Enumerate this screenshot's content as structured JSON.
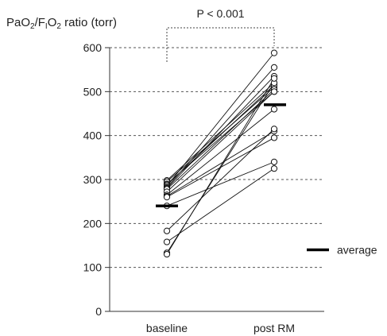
{
  "chart_data": {
    "type": "line",
    "ylabel": {
      "parts": [
        {
          "t": "PaO",
          "sub": false
        },
        {
          "t": "2",
          "sub": true
        },
        {
          "t": "/F",
          "sub": false
        },
        {
          "t": "I",
          "sub": true
        },
        {
          "t": "O",
          "sub": false
        },
        {
          "t": "2",
          "sub": true
        },
        {
          "t": " ratio (torr)",
          "sub": false
        }
      ]
    },
    "categories": [
      "baseline",
      "post RM"
    ],
    "ylim": [
      0,
      600
    ],
    "yticks": [
      0,
      100,
      200,
      300,
      400,
      500,
      600
    ],
    "grid": true,
    "annotation": "P < 0.001",
    "legend": {
      "label": "average",
      "placement": "right"
    },
    "averages": [
      240,
      470
    ],
    "pairs": [
      [
        298,
        520
      ],
      [
        295,
        510
      ],
      [
        290,
        500
      ],
      [
        288,
        515
      ],
      [
        285,
        588
      ],
      [
        282,
        555
      ],
      [
        280,
        535
      ],
      [
        278,
        505
      ],
      [
        272,
        500
      ],
      [
        265,
        460
      ],
      [
        262,
        410
      ],
      [
        260,
        395
      ],
      [
        240,
        340
      ],
      [
        183,
        415
      ],
      [
        158,
        325
      ],
      [
        133,
        520
      ],
      [
        130,
        530
      ]
    ]
  }
}
